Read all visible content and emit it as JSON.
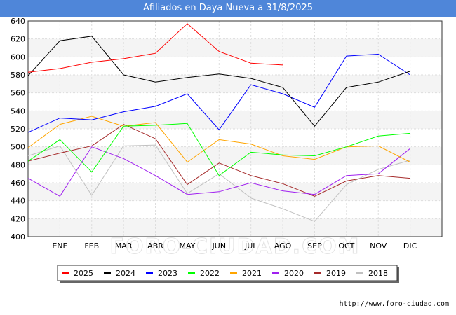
{
  "title": "Afiliados en Daya Nueva a 31/8/2025",
  "footer": "http://www.foro-ciudad.com",
  "watermark": "FORO-CIUDAD.COM",
  "chart_data": {
    "type": "line",
    "categories": [
      "",
      "ENE",
      "FEB",
      "MAR",
      "ABR",
      "MAY",
      "JUN",
      "JUL",
      "AGO",
      "SEP",
      "OCT",
      "NOV",
      "DIC"
    ],
    "ylim": [
      400,
      640
    ],
    "yticks": [
      400,
      420,
      440,
      460,
      480,
      500,
      520,
      540,
      560,
      580,
      600,
      620,
      640
    ],
    "grid": true,
    "legend_position": "bottom",
    "series": [
      {
        "name": "2018",
        "color": "#c0c0c0",
        "values": [
          490,
          501,
          446,
          501,
          502,
          448,
          470,
          443,
          431,
          417,
          458,
          475,
          485
        ]
      },
      {
        "name": "2019",
        "color": "#a52a2a",
        "values": [
          484,
          493,
          501,
          525,
          509,
          458,
          482,
          468,
          459,
          445,
          462,
          468,
          465
        ]
      },
      {
        "name": "2020",
        "color": "#a020f0",
        "values": [
          465,
          445,
          500,
          487,
          468,
          447,
          450,
          460,
          451,
          447,
          468,
          470,
          498
        ]
      },
      {
        "name": "2021",
        "color": "#ffa500",
        "values": [
          499,
          525,
          534,
          523,
          527,
          483,
          508,
          503,
          490,
          486,
          500,
          501,
          483
        ]
      },
      {
        "name": "2022",
        "color": "#00ff00",
        "values": [
          484,
          508,
          472,
          523,
          524,
          526,
          468,
          494,
          491,
          490,
          500,
          512,
          515
        ]
      },
      {
        "name": "2023",
        "color": "#0000ff",
        "values": [
          516,
          532,
          530,
          539,
          545,
          559,
          519,
          569,
          559,
          544,
          601,
          603,
          580
        ]
      },
      {
        "name": "2024",
        "color": "#000000",
        "values": [
          579,
          618,
          623,
          580,
          572,
          577,
          581,
          576,
          566,
          523,
          566,
          572,
          584
        ]
      },
      {
        "name": "2025",
        "color": "#ff0000",
        "values": [
          583,
          587,
          594,
          598,
          604,
          637,
          606,
          593,
          591,
          null,
          null,
          null,
          null
        ]
      }
    ],
    "legend_order": [
      "2025",
      "2024",
      "2023",
      "2022",
      "2021",
      "2020",
      "2019",
      "2018"
    ]
  }
}
